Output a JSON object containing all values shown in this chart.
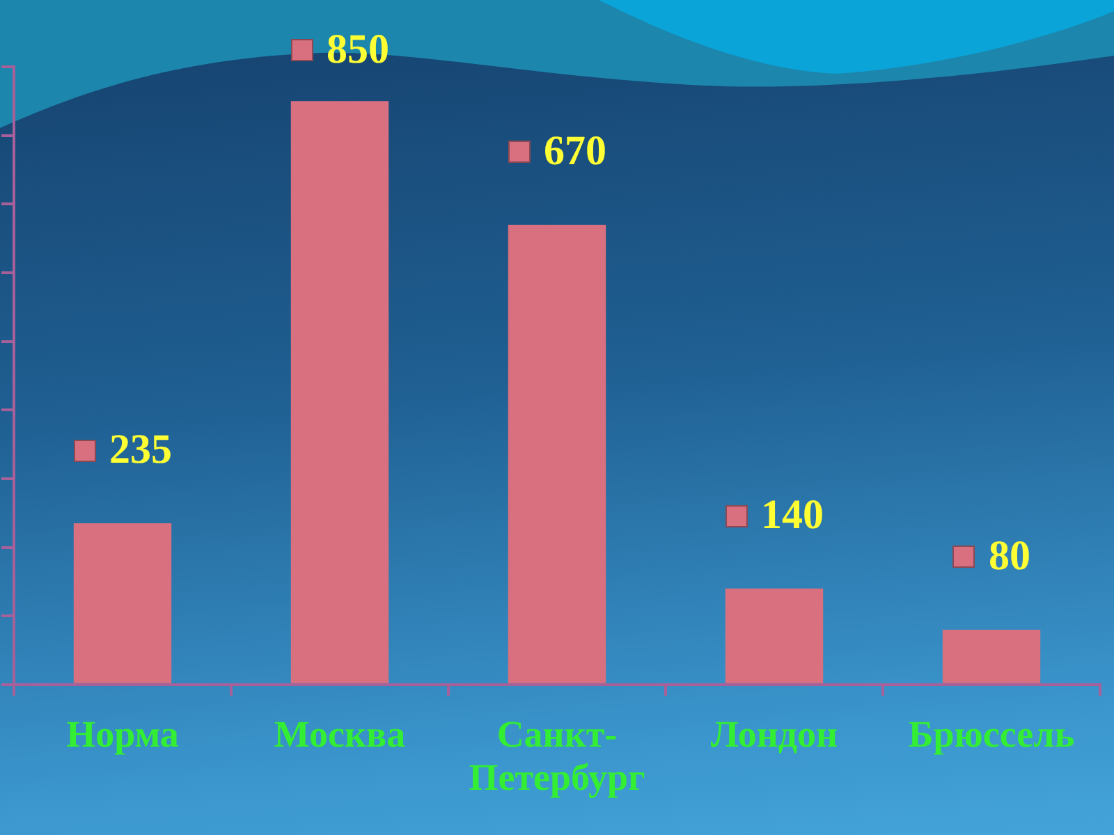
{
  "chart_data": {
    "type": "bar",
    "categories": [
      "Норма",
      "Москва",
      "Санкт-Петербург",
      "Лондон",
      "Брюссель"
    ],
    "values": [
      235,
      850,
      670,
      140,
      80
    ],
    "color": "#d9707f",
    "ylim": [
      0,
      900
    ],
    "yticks": [
      {
        "value": 0,
        "label": null
      },
      {
        "value": 100,
        "label": null
      },
      {
        "value": 200,
        "label": null
      },
      {
        "value": 300,
        "label": null
      },
      {
        "value": 400,
        "label": null
      },
      {
        "value": 500,
        "label": null
      },
      {
        "value": 600,
        "label": null
      },
      {
        "value": 700,
        "label": null
      },
      {
        "value": 800,
        "label": null
      },
      {
        "value": 900,
        "label": null
      }
    ],
    "tick_labels": "x",
    "data_labels": true
  }
}
